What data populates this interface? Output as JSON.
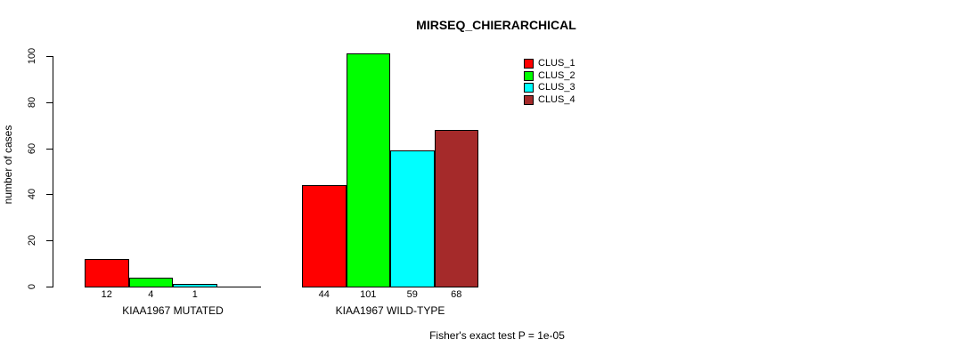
{
  "chart_data": {
    "type": "bar",
    "title": "MIRSEQ_CHIERARCHICAL",
    "ylabel": "number of cases",
    "xlabel": "",
    "ylim": [
      0,
      100
    ],
    "yticks": [
      0,
      20,
      40,
      60,
      80,
      100
    ],
    "grid": false,
    "legend_position": "top-right",
    "clusters": [
      "CLUS_1",
      "CLUS_2",
      "CLUS_3",
      "CLUS_4"
    ],
    "colors": [
      "#ff0000",
      "#00ff00",
      "#00ffff",
      "#a52a2a"
    ],
    "groups": [
      {
        "label": "KIAA1967 MUTATED",
        "values": [
          12,
          4,
          1,
          0
        ],
        "bar_labels": [
          "12",
          "4",
          "1",
          ""
        ]
      },
      {
        "label": "KIAA1967 WILD-TYPE",
        "values": [
          44,
          101,
          59,
          68
        ],
        "bar_labels": [
          "44",
          "101",
          "59",
          "68"
        ]
      }
    ],
    "annotation": "Fisher's exact test P = 1e-05"
  }
}
